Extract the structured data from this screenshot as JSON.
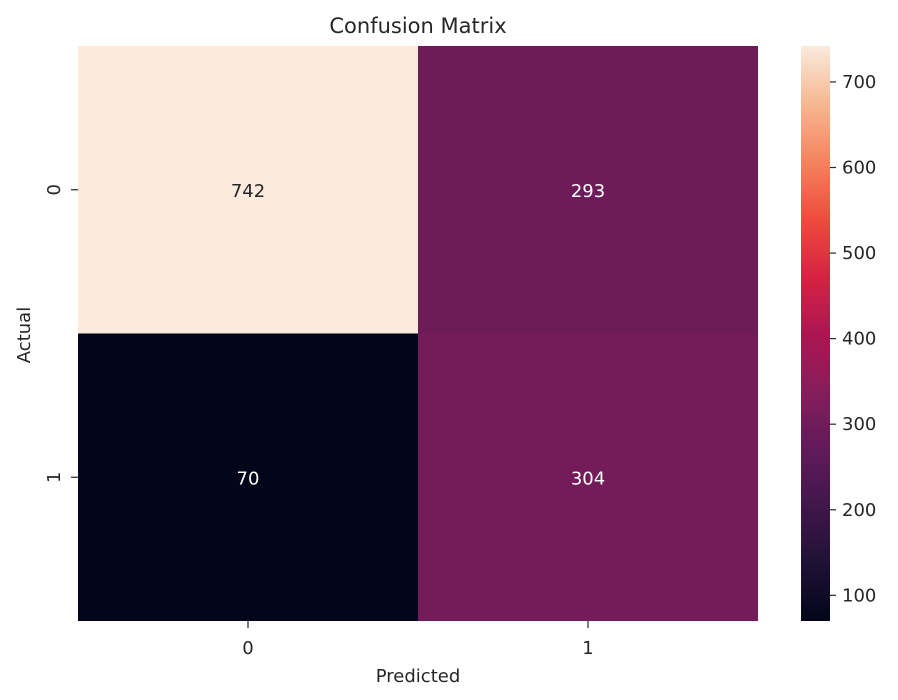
{
  "chart_data": {
    "type": "heatmap",
    "title": "Confusion Matrix",
    "xlabel": "Predicted",
    "ylabel": "Actual",
    "x_categories": [
      "0",
      "1"
    ],
    "y_categories": [
      "0",
      "1"
    ],
    "values": [
      [
        742,
        293
      ],
      [
        70,
        304
      ]
    ],
    "annotations": true,
    "colormap": "rocket",
    "vmin": 70,
    "vmax": 742,
    "colorbar": {
      "ticks": [
        100,
        200,
        300,
        400,
        500,
        600,
        700
      ],
      "tick_labels": [
        "100",
        "200",
        "300",
        "400",
        "500",
        "600",
        "700"
      ],
      "placement": "right"
    },
    "grid": false
  }
}
